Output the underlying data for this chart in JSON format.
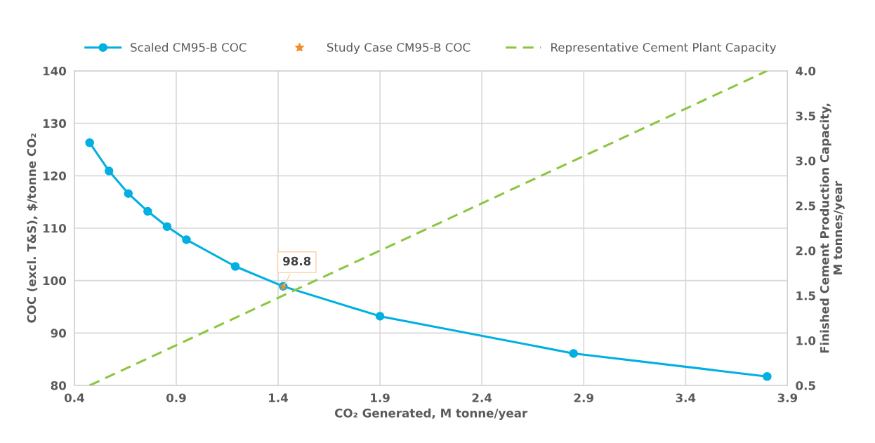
{
  "chart_data": {
    "type": "line",
    "xlabel": "CO₂ Generated, M tonne/year",
    "ylabel": "COC (excl. T&S), $/tonne CO₂",
    "y2label": "Finished Cement Production Capacity,\nM tonnes/year",
    "xlim": [
      0.4,
      3.9
    ],
    "xticks": [
      0.4,
      0.9,
      1.4,
      1.9,
      2.4,
      2.9,
      3.4,
      3.9
    ],
    "ylim": [
      80,
      140
    ],
    "yticks": [
      80,
      90,
      100,
      110,
      120,
      130,
      140
    ],
    "y2lim": [
      0.5,
      4.0
    ],
    "y2ticks": [
      {
        "value": 0.5,
        "label": "0.5"
      },
      {
        "value": 1.0,
        "label": "1.0"
      },
      {
        "value": 1.5,
        "label": "1.5"
      },
      {
        "value": 2.0,
        "label": "2.0"
      },
      {
        "value": 2.5,
        "label": "2.5"
      },
      {
        "value": 3.0,
        "label": "3.0"
      },
      {
        "value": 3.5,
        "label": "3.5"
      },
      {
        "value": 4.0,
        "label": "4.0"
      }
    ],
    "grid": true,
    "legend": "top",
    "series": [
      {
        "name": "Scaled CM95-B COC",
        "color": "#00b0e0",
        "marker": "circle",
        "line_style": "solid",
        "x": [
          0.475,
          0.57,
          0.665,
          0.76,
          0.855,
          0.95,
          1.19,
          1.425,
          1.9,
          2.85,
          3.8
        ],
        "values": [
          126.3,
          120.9,
          116.6,
          113.2,
          110.3,
          107.8,
          102.7,
          98.9,
          93.2,
          86.1,
          81.7
        ]
      },
      {
        "name": "Study Case CM95-B COC",
        "type": "scatter",
        "color": "#f28c28",
        "marker": "star",
        "x": [
          1.425
        ],
        "values": [
          98.8
        ],
        "value_labels": [
          "98.8"
        ]
      },
      {
        "name": "Representative Cement Plant Capacity",
        "type": "line",
        "axis": "y2",
        "color": "#8cc63f",
        "marker": "none",
        "line_style": "dashed",
        "x": [
          0.475,
          3.8
        ],
        "values": [
          0.5,
          4.0
        ]
      }
    ]
  }
}
